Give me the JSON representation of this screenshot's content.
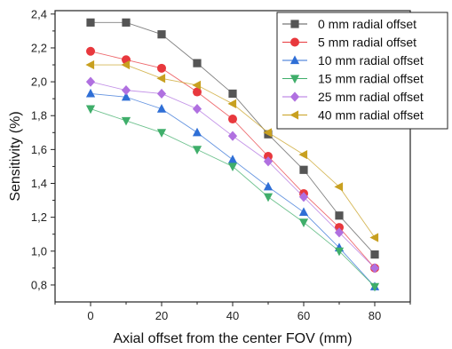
{
  "chart_data": {
    "type": "line",
    "xlabel": "Axial offset from the center FOV (mm)",
    "ylabel": "Sensitivity (%)",
    "xlim": [
      -10,
      90
    ],
    "ylim": [
      0.7,
      2.42
    ],
    "x_ticks": [
      0,
      20,
      40,
      60,
      80
    ],
    "y_ticks": [
      0.8,
      1.0,
      1.2,
      1.4,
      1.6,
      1.8,
      2.0,
      2.2,
      2.4
    ],
    "y_tick_labels": [
      "0,8",
      "1,0",
      "1,2",
      "1,4",
      "1,6",
      "1,8",
      "2,0",
      "2,2",
      "2,4"
    ],
    "x": [
      0,
      10,
      20,
      30,
      40,
      50,
      60,
      70,
      80
    ],
    "legend_position": "top-right",
    "grid": false,
    "series": [
      {
        "name": "0 mm radial offset",
        "color": "#555555",
        "marker": "square",
        "values": [
          2.35,
          2.35,
          2.28,
          2.11,
          1.93,
          1.69,
          1.48,
          1.21,
          0.98
        ]
      },
      {
        "name": "5 mm radial offset",
        "color": "#e8383d",
        "marker": "circle",
        "values": [
          2.18,
          2.13,
          2.08,
          1.94,
          1.78,
          1.56,
          1.34,
          1.14,
          0.9
        ]
      },
      {
        "name": "10 mm radial offset",
        "color": "#2f6fd6",
        "marker": "triangle-up",
        "values": [
          1.93,
          1.91,
          1.84,
          1.7,
          1.54,
          1.38,
          1.23,
          1.02,
          0.79
        ]
      },
      {
        "name": "15 mm radial offset",
        "color": "#3fae6a",
        "marker": "triangle-down",
        "values": [
          1.84,
          1.77,
          1.7,
          1.6,
          1.5,
          1.32,
          1.17,
          1.0,
          0.79
        ]
      },
      {
        "name": "25 mm radial offset",
        "color": "#b070e0",
        "marker": "diamond",
        "values": [
          2.0,
          1.95,
          1.93,
          1.84,
          1.68,
          1.53,
          1.32,
          1.11,
          0.9
        ]
      },
      {
        "name": "40 mm radial offset",
        "color": "#c8a020",
        "marker": "triangle-left",
        "values": [
          2.1,
          2.1,
          2.02,
          1.98,
          1.87,
          1.7,
          1.57,
          1.38,
          1.08
        ]
      }
    ]
  }
}
